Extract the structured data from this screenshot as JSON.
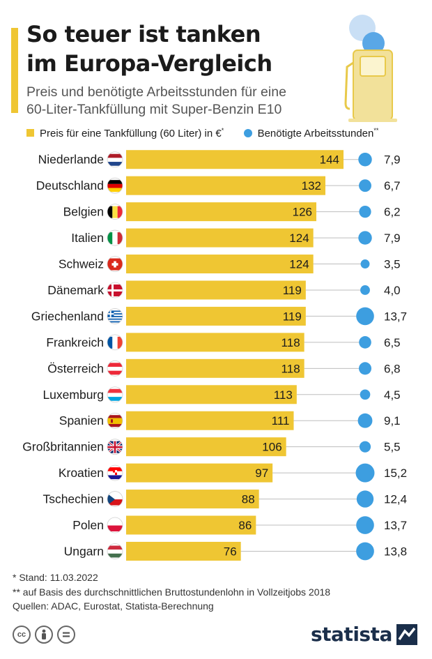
{
  "header": {
    "title_line1": "So teuer ist tanken",
    "title_line2": "im Europa-Vergleich",
    "subtitle_line1": "Preis und benötigte Arbeitsstunden für eine",
    "subtitle_line2": "60-Liter-Tankfüllung mit Super-Benzin E10"
  },
  "legend": {
    "price_label": "Preis für eine Tankfüllung (60 Liter) in €",
    "price_mark": "*",
    "hours_label": "Benötigte Arbeitsstunden",
    "hours_mark": "**"
  },
  "colors": {
    "bar": "#efc633",
    "dot": "#3d9ee0",
    "accent": "#efc633",
    "line": "#bdbdbd"
  },
  "chart_data": {
    "type": "bar",
    "orientation": "horizontal",
    "categories": [
      "Niederlande",
      "Deutschland",
      "Belgien",
      "Italien",
      "Schweiz",
      "Dänemark",
      "Griechenland",
      "Frankreich",
      "Österreich",
      "Luxemburg",
      "Spanien",
      "Großbritannien",
      "Kroatien",
      "Tschechien",
      "Polen",
      "Ungarn"
    ],
    "flags": [
      "nl",
      "de",
      "be",
      "it",
      "ch",
      "dk",
      "gr",
      "fr",
      "at",
      "lu",
      "es",
      "gb",
      "hr",
      "cz",
      "pl",
      "hu"
    ],
    "series": [
      {
        "name": "Preis für eine Tankfüllung (60 Liter) in €",
        "values": [
          144,
          132,
          126,
          124,
          124,
          119,
          119,
          118,
          118,
          113,
          111,
          106,
          97,
          88,
          86,
          76
        ]
      },
      {
        "name": "Benötigte Arbeitsstunden",
        "values": [
          7.9,
          6.7,
          6.2,
          7.9,
          3.5,
          4.0,
          13.7,
          6.5,
          6.8,
          4.5,
          9.1,
          5.5,
          15.2,
          12.4,
          13.7,
          13.8
        ]
      }
    ],
    "hours_labels": [
      "7,9",
      "6,7",
      "6,2",
      "7,9",
      "3,5",
      "4,0",
      "13,7",
      "6,5",
      "6,8",
      "4,5",
      "9,1",
      "5,5",
      "15,2",
      "12,4",
      "13,7",
      "13,8"
    ]
  },
  "footnotes": {
    "line1": "*   Stand: 11.03.2022",
    "line2": "** auf Basis des durchschnittlichen Bruttostundenlohn in Vollzeitjobs 2018",
    "line3": "Quellen: ADAC, Eurostat, Statista-Berechnung"
  },
  "brand": {
    "name": "statista"
  },
  "license_icons": [
    "cc-icon",
    "by-icon",
    "nd-icon"
  ]
}
